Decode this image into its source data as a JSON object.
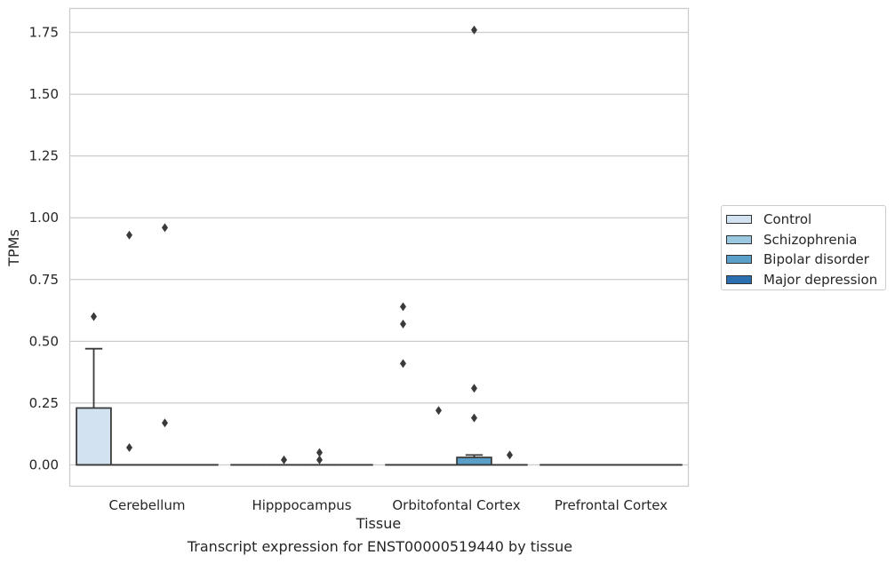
{
  "chart_data": {
    "type": "box",
    "caption": "Transcript expression for ENST00000519440 by tissue",
    "xlabel": "Tissue",
    "ylabel": "TPMs",
    "ylim": [
      -0.085,
      1.85
    ],
    "yticks": [
      "0.00",
      "0.25",
      "0.50",
      "0.75",
      "1.00",
      "1.25",
      "1.50",
      "1.75"
    ],
    "ytick_values": [
      0,
      0.25,
      0.5,
      0.75,
      1.0,
      1.25,
      1.5,
      1.75
    ],
    "grid": true,
    "legend_position": "right",
    "categories": [
      "Cerebellum",
      "Hipppocampus",
      "Orbitofontal Cortex",
      "Prefrontal Cortex"
    ],
    "series": [
      {
        "name": "Control",
        "color": "#d2e2f1",
        "boxes": [
          {
            "q1": 0,
            "median": 0,
            "q3": 0.23,
            "whisker_low": 0,
            "whisker_high": 0.47,
            "outliers": [
              0.6
            ]
          },
          {
            "q1": 0,
            "median": 0,
            "q3": 0,
            "whisker_low": 0,
            "whisker_high": 0,
            "outliers": []
          },
          {
            "q1": 0,
            "median": 0,
            "q3": 0,
            "whisker_low": 0,
            "whisker_high": 0,
            "outliers": [
              0.64,
              0.57,
              0.41
            ]
          },
          {
            "q1": 0,
            "median": 0,
            "q3": 0,
            "whisker_low": 0,
            "whisker_high": 0,
            "outliers": []
          }
        ]
      },
      {
        "name": "Schizophrenia",
        "color": "#9ac8e0",
        "boxes": [
          {
            "q1": 0,
            "median": 0,
            "q3": 0,
            "whisker_low": 0,
            "whisker_high": 0,
            "outliers": [
              0.93,
              0.07
            ]
          },
          {
            "q1": 0,
            "median": 0,
            "q3": 0,
            "whisker_low": 0,
            "whisker_high": 0,
            "outliers": [
              0.02
            ]
          },
          {
            "q1": 0,
            "median": 0,
            "q3": 0,
            "whisker_low": 0,
            "whisker_high": 0,
            "outliers": [
              0.22
            ]
          },
          {
            "q1": 0,
            "median": 0,
            "q3": 0,
            "whisker_low": 0,
            "whisker_high": 0,
            "outliers": []
          }
        ]
      },
      {
        "name": "Bipolar disorder",
        "color": "#5a9fca",
        "boxes": [
          {
            "q1": 0,
            "median": 0,
            "q3": 0,
            "whisker_low": 0,
            "whisker_high": 0,
            "outliers": [
              0.96,
              0.17
            ]
          },
          {
            "q1": 0,
            "median": 0,
            "q3": 0,
            "whisker_low": 0,
            "whisker_high": 0,
            "outliers": [
              0.05,
              0.02
            ]
          },
          {
            "q1": 0,
            "median": 0,
            "q3": 0.03,
            "whisker_low": 0,
            "whisker_high": 0.04,
            "outliers": [
              1.76,
              0.31,
              0.19
            ]
          },
          {
            "q1": 0,
            "median": 0,
            "q3": 0,
            "whisker_low": 0,
            "whisker_high": 0,
            "outliers": []
          }
        ]
      },
      {
        "name": "Major depression",
        "color": "#2a6fb0",
        "boxes": [
          {
            "q1": 0,
            "median": 0,
            "q3": 0,
            "whisker_low": 0,
            "whisker_high": 0,
            "outliers": []
          },
          {
            "q1": 0,
            "median": 0,
            "q3": 0,
            "whisker_low": 0,
            "whisker_high": 0,
            "outliers": []
          },
          {
            "q1": 0,
            "median": 0,
            "q3": 0,
            "whisker_low": 0,
            "whisker_high": 0,
            "outliers": [
              0.04
            ]
          },
          {
            "q1": 0,
            "median": 0,
            "q3": 0,
            "whisker_low": 0,
            "whisker_high": 0,
            "outliers": []
          }
        ]
      }
    ]
  }
}
